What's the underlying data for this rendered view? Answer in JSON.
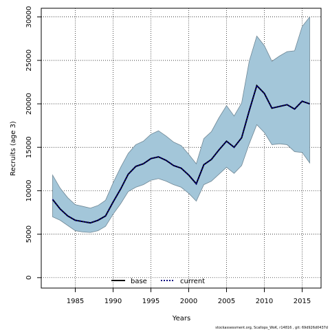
{
  "chart_data": {
    "type": "line",
    "title": "",
    "xlabel": "Years",
    "ylabel": "Recruits (age 3)",
    "xlim": [
      1980.5,
      2017.5
    ],
    "ylim": [
      -1200,
      31000
    ],
    "xticks": [
      "1985",
      "1990",
      "1995",
      "2000",
      "2005",
      "2010",
      "2015"
    ],
    "yticks": [
      "0",
      "5000",
      "10000",
      "15000",
      "20000",
      "25000",
      "30000"
    ],
    "grid": true,
    "legend_position": "bottom-center",
    "x": [
      1982,
      1983,
      1984,
      1985,
      1986,
      1987,
      1988,
      1989,
      1990,
      1991,
      1992,
      1993,
      1994,
      1995,
      1996,
      1997,
      1998,
      1999,
      2000,
      2001,
      2002,
      2003,
      2004,
      2005,
      2006,
      2007,
      2008,
      2009,
      2010,
      2011,
      2012,
      2013,
      2014,
      2015,
      2016
    ],
    "series": [
      {
        "name": "base",
        "color": "#000000",
        "style": "solid",
        "values": [
          9000,
          7900,
          7100,
          6600,
          6450,
          6300,
          6600,
          7100,
          8700,
          10200,
          11900,
          12800,
          13100,
          13700,
          13900,
          13500,
          12900,
          12600,
          11800,
          10800,
          13000,
          13600,
          14700,
          15700,
          15000,
          16100,
          19200,
          22100,
          21200,
          19500,
          19700,
          19900,
          19400,
          20300,
          20000
        ]
      },
      {
        "name": "current",
        "color": "#000080",
        "style": "dotted",
        "values": [
          9000,
          7900,
          7100,
          6600,
          6450,
          6300,
          6600,
          7100,
          8700,
          10200,
          11900,
          12800,
          13100,
          13700,
          13900,
          13500,
          12900,
          12600,
          11800,
          10800,
          13000,
          13600,
          14700,
          15700,
          15000,
          16100,
          19200,
          22100,
          21200,
          19500,
          19700,
          19900,
          19400,
          20300,
          20000
        ]
      }
    ],
    "band": {
      "color": "#a3c6d9",
      "edge_color": "#6f8795",
      "lower": [
        7000,
        6600,
        6000,
        5400,
        5250,
        5200,
        5400,
        5900,
        7300,
        8500,
        9900,
        10400,
        10700,
        11200,
        11400,
        11100,
        10700,
        10400,
        9700,
        8800,
        10700,
        11100,
        11900,
        12700,
        12000,
        12900,
        15400,
        17600,
        16700,
        15300,
        15400,
        15300,
        14500,
        14400,
        13200
      ],
      "upper": [
        11800,
        10300,
        9200,
        8400,
        8200,
        8000,
        8300,
        8900,
        10900,
        12700,
        14300,
        15300,
        15700,
        16500,
        16900,
        16300,
        15600,
        15200,
        14200,
        13100,
        16000,
        16800,
        18400,
        19800,
        18600,
        20100,
        24900,
        27800,
        26700,
        24900,
        25500,
        26000,
        26100,
        28900,
        30000
      ]
    },
    "footnote": "stockassessment.org, Scallops_WoK, r14816 , git: 69d926d0437d"
  }
}
